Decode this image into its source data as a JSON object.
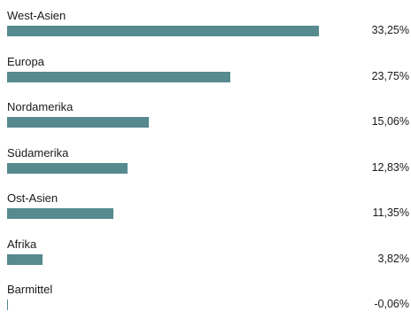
{
  "chart_data": {
    "type": "bar",
    "orientation": "horizontal",
    "categories": [
      "West-Asien",
      "Europa",
      "Nordamerika",
      "Südamerika",
      "Ost-Asien",
      "Afrika",
      "Barmittel"
    ],
    "values": [
      33.25,
      23.75,
      15.06,
      12.83,
      11.35,
      3.82,
      -0.06
    ],
    "value_labels": [
      "33,25%",
      "23,75%",
      "15,06%",
      "12,83%",
      "11,35%",
      "3,82%",
      "-0,06%"
    ],
    "bar_color": "#568a8f",
    "grid": false,
    "legend": "none"
  }
}
